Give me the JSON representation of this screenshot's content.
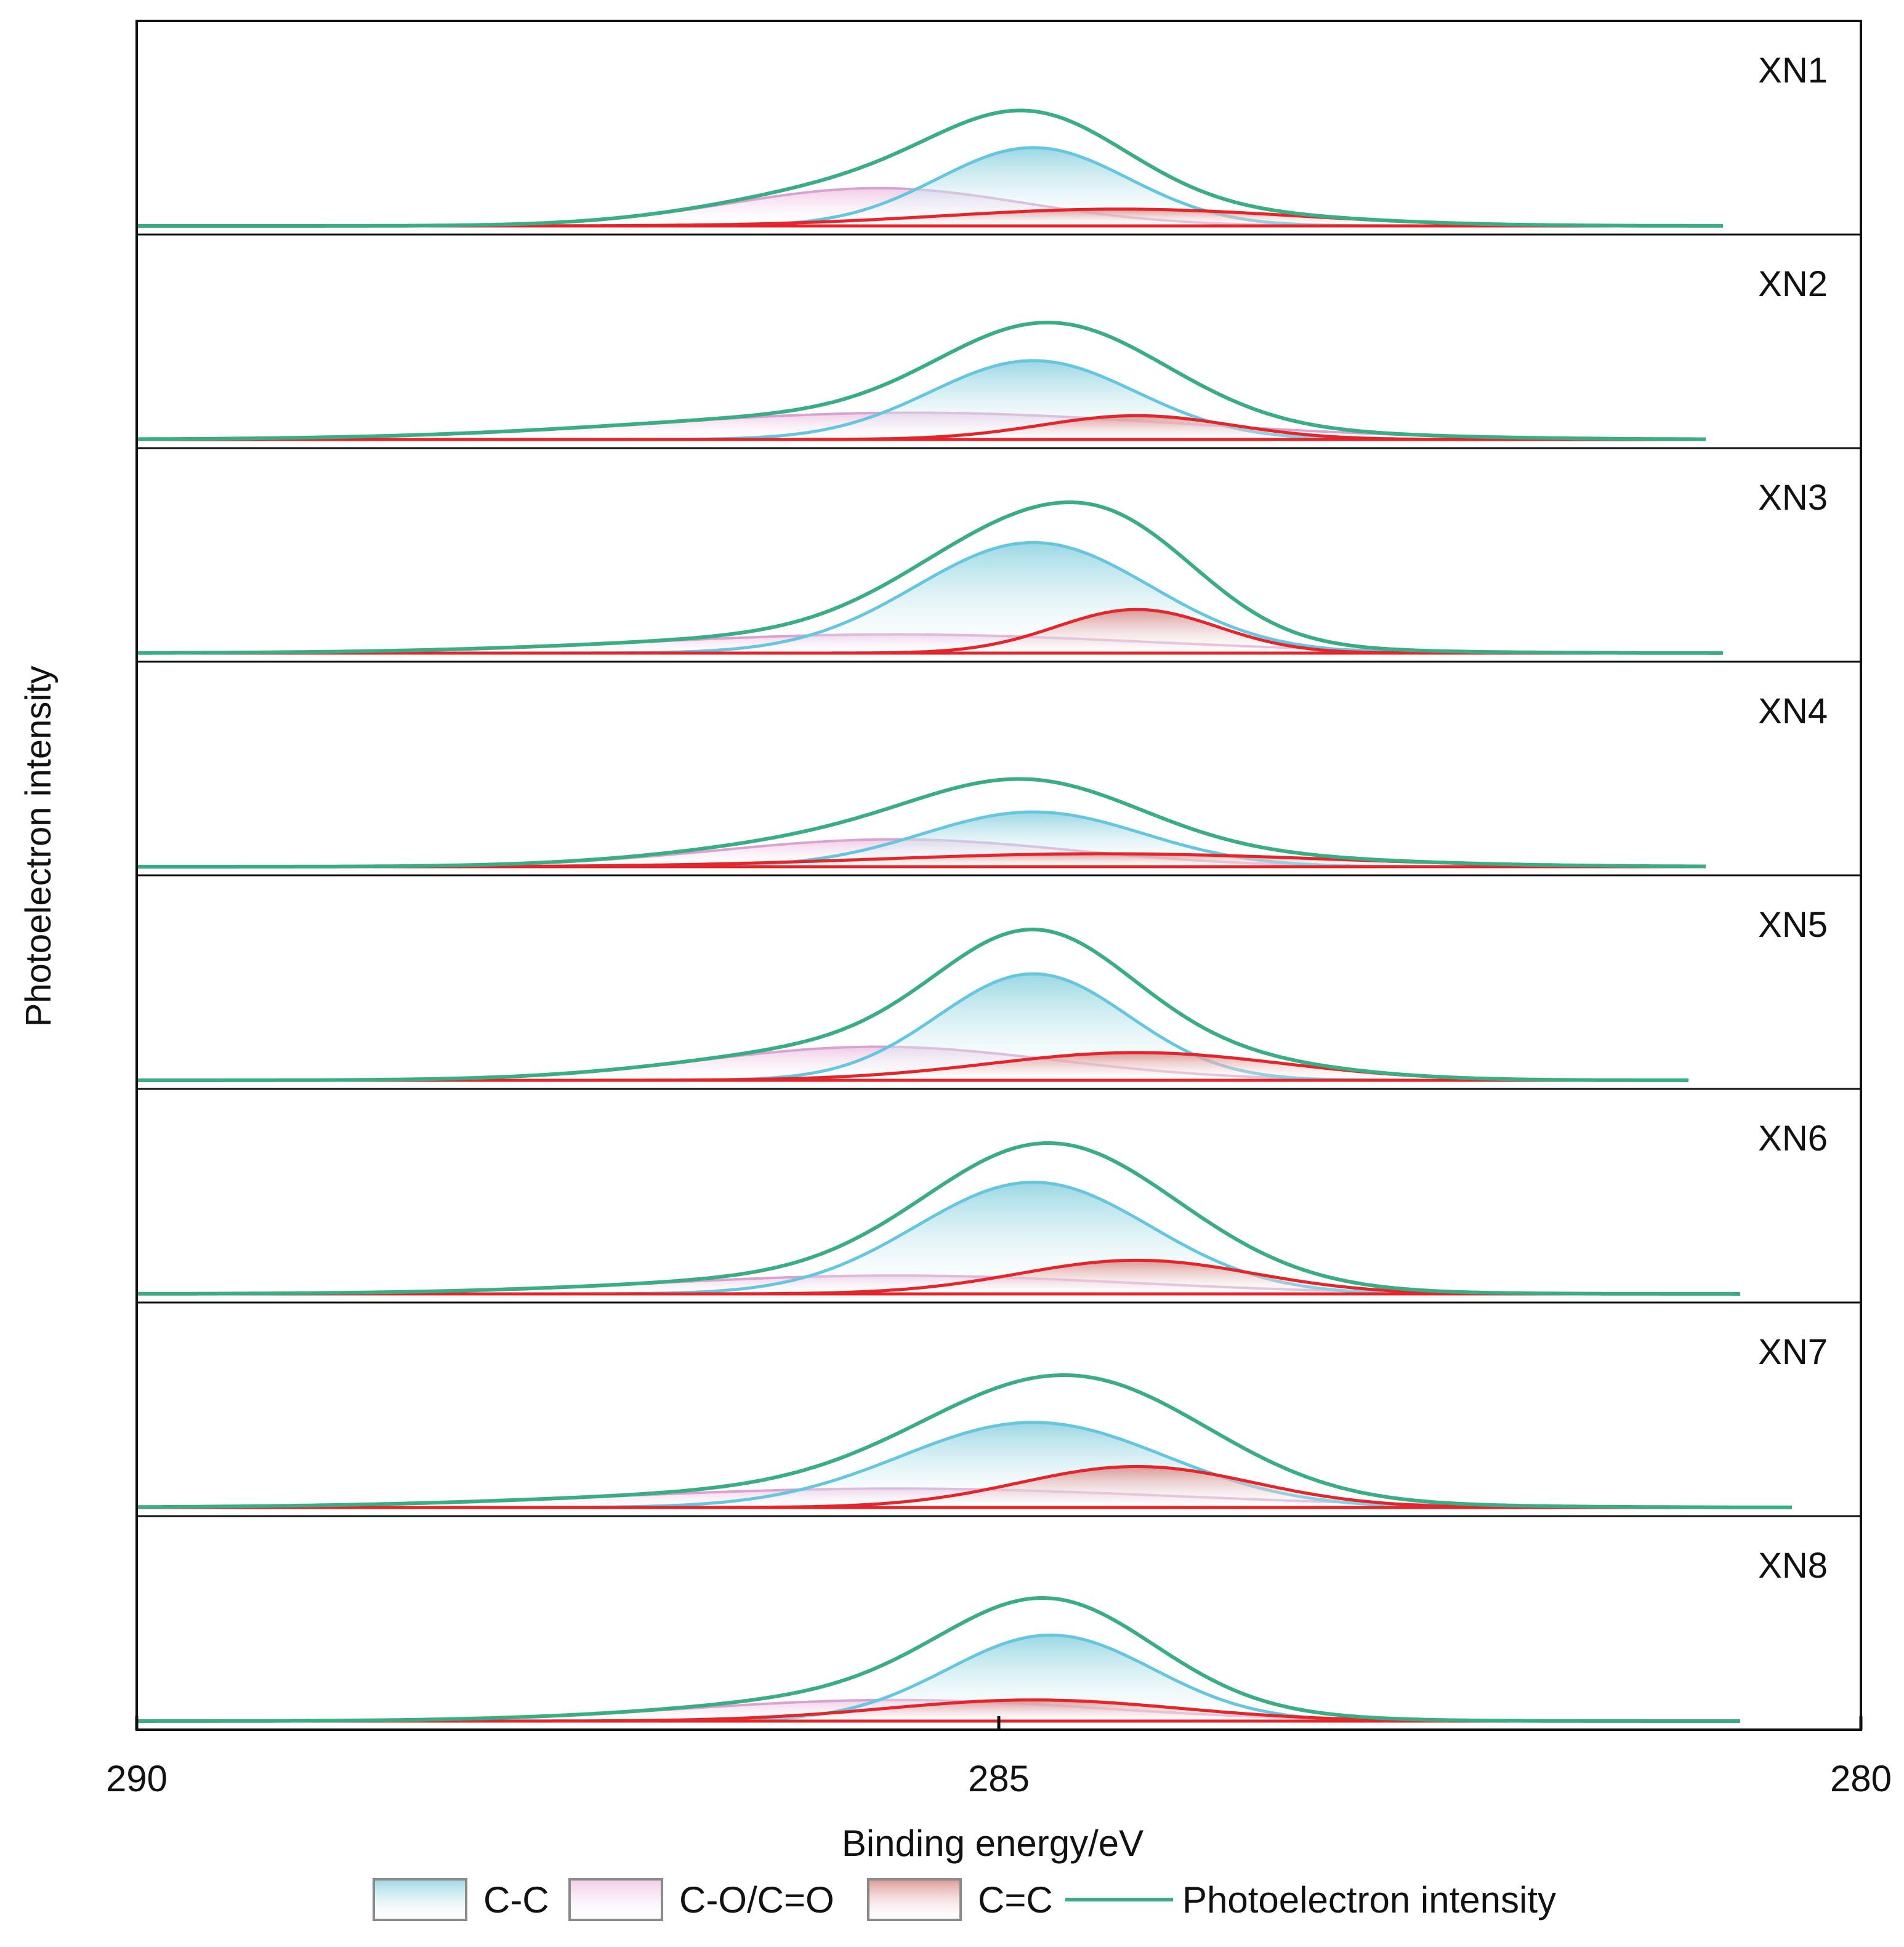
{
  "chart_data": {
    "type": "line",
    "subtype": "stacked XPS C1s peak-fitting spectra",
    "xlabel": "Binding energy/eV",
    "ylabel": "Photoelectron intensity",
    "xlim": [
      290,
      280
    ],
    "x_reversed": true,
    "xticks": [
      {
        "value": 290,
        "label": "290"
      },
      {
        "value": 285,
        "label": "285"
      },
      {
        "value": 280,
        "label": "280"
      }
    ],
    "grid": false,
    "legend_position": "bottom-center",
    "legend": [
      {
        "key": "cc",
        "label": "C-C",
        "kind": "area"
      },
      {
        "key": "co",
        "label": "C-O/C=O",
        "kind": "area"
      },
      {
        "key": "cdc",
        "label": "C=C",
        "kind": "area"
      },
      {
        "key": "total",
        "label": "Photoelectron intensity",
        "kind": "line"
      }
    ],
    "colors": {
      "cc_line": "#66c6df",
      "cc_fill_top": "#8fd3e0",
      "cc_fill_bottom": "#ffffff",
      "co_line": "#d9a3cf",
      "co_fill_top": "#efc5e4",
      "co_fill_bottom": "#ffffff",
      "cdc_line": "#e3262b",
      "cdc_fill_top": "#d98d8a",
      "cdc_fill_bottom": "#ffffff",
      "total_line": "#3aad84",
      "baseline": "#e3262b",
      "axis": "#111111"
    },
    "component_positions_eV": {
      "C-C": 284.8,
      "C-O/C=O": 285.7,
      "C=C": 284.2
    },
    "samples": [
      {
        "name": "XN1",
        "cc": {
          "center": 284.8,
          "fwhm": 1.3,
          "height": 0.56
        },
        "co": {
          "center": 285.7,
          "fwhm": 2.0,
          "height": 0.27
        },
        "cdc": {
          "center": 284.3,
          "fwhm": 2.4,
          "height": 0.12
        },
        "total_height": 0.75,
        "data_end_eV": 280.8
      },
      {
        "name": "XN2",
        "cc": {
          "center": 284.8,
          "fwhm": 1.4,
          "height": 0.53
        },
        "co": {
          "center": 285.5,
          "fwhm": 3.6,
          "height": 0.18
        },
        "cdc": {
          "center": 284.2,
          "fwhm": 1.3,
          "height": 0.16
        },
        "total_height": 0.76,
        "data_end_eV": 280.9
      },
      {
        "name": "XN3",
        "cc": {
          "center": 284.8,
          "fwhm": 1.6,
          "height": 0.71
        },
        "co": {
          "center": 285.6,
          "fwhm": 3.4,
          "height": 0.12
        },
        "cdc": {
          "center": 284.2,
          "fwhm": 1.1,
          "height": 0.28
        },
        "total_height": 0.98,
        "data_end_eV": 280.8
      },
      {
        "name": "XN4",
        "cc": {
          "center": 284.8,
          "fwhm": 1.5,
          "height": 0.38
        },
        "co": {
          "center": 285.6,
          "fwhm": 2.4,
          "height": 0.19
        },
        "cdc": {
          "center": 284.4,
          "fwhm": 3.0,
          "height": 0.09
        },
        "total_height": 0.57,
        "data_end_eV": 280.9
      },
      {
        "name": "XN5",
        "cc": {
          "center": 284.8,
          "fwhm": 1.3,
          "height": 0.73
        },
        "co": {
          "center": 285.7,
          "fwhm": 2.4,
          "height": 0.23
        },
        "cdc": {
          "center": 284.2,
          "fwhm": 2.0,
          "height": 0.19
        },
        "total_height": 0.98,
        "data_end_eV": 281.0
      },
      {
        "name": "XN6",
        "cc": {
          "center": 284.8,
          "fwhm": 1.6,
          "height": 0.73
        },
        "co": {
          "center": 285.6,
          "fwhm": 3.2,
          "height": 0.12
        },
        "cdc": {
          "center": 284.2,
          "fwhm": 1.6,
          "height": 0.22
        },
        "total_height": 0.98,
        "data_end_eV": 280.7
      },
      {
        "name": "XN7",
        "cc": {
          "center": 284.8,
          "fwhm": 1.8,
          "height": 0.54
        },
        "co": {
          "center": 285.6,
          "fwhm": 3.8,
          "height": 0.12
        },
        "cdc": {
          "center": 284.2,
          "fwhm": 1.6,
          "height": 0.26
        },
        "total_height": 0.86,
        "data_end_eV": 280.4
      },
      {
        "name": "XN8",
        "cc": {
          "center": 284.7,
          "fwhm": 1.4,
          "height": 0.57
        },
        "co": {
          "center": 285.6,
          "fwhm": 2.8,
          "height": 0.14
        },
        "cdc": {
          "center": 284.8,
          "fwhm": 2.0,
          "height": 0.14
        },
        "total_height": 0.8,
        "data_end_eV": 280.7
      }
    ]
  }
}
